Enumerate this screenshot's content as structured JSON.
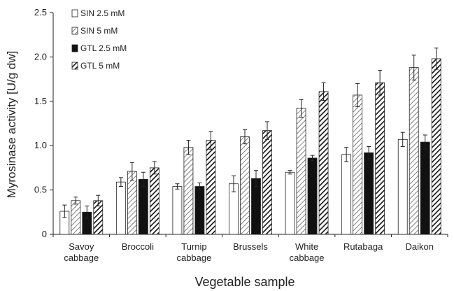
{
  "chart_data": {
    "type": "bar",
    "title": "",
    "xlabel": "Vegetable sample",
    "ylabel": "Myrosinase activity [U/g dw]",
    "ylim": [
      0,
      2.5
    ],
    "yticks": [
      "0",
      "0.5",
      "1.0",
      "1.5",
      "2.0",
      "2.5"
    ],
    "grid": false,
    "legend_position": "top-left",
    "categories": [
      [
        "Savoy",
        "cabbage"
      ],
      [
        "Broccoli"
      ],
      [
        "Turnip",
        "cabbage"
      ],
      [
        "Brussels"
      ],
      [
        "White",
        "cabbage"
      ],
      [
        "Rutabaga"
      ],
      [
        "Daikon"
      ]
    ],
    "series": [
      {
        "name": "SIN 2.5 mM",
        "style": "white",
        "values": [
          0.26,
          0.59,
          0.54,
          0.57,
          0.7,
          0.9,
          1.07
        ],
        "errors": [
          0.07,
          0.05,
          0.03,
          0.09,
          0.02,
          0.08,
          0.08
        ]
      },
      {
        "name": "SIN 5 mM",
        "style": "hatch-light",
        "values": [
          0.38,
          0.71,
          0.98,
          1.1,
          1.42,
          1.57,
          1.88
        ],
        "errors": [
          0.04,
          0.1,
          0.08,
          0.08,
          0.1,
          0.13,
          0.14
        ]
      },
      {
        "name": "GTL 2.5 mM",
        "style": "black",
        "values": [
          0.25,
          0.62,
          0.54,
          0.63,
          0.86,
          0.92,
          1.04
        ],
        "errors": [
          0.07,
          0.08,
          0.04,
          0.09,
          0.03,
          0.07,
          0.08
        ]
      },
      {
        "name": "GTL 5 mM",
        "style": "hatch-dark",
        "values": [
          0.38,
          0.75,
          1.06,
          1.17,
          1.61,
          1.71,
          1.98
        ],
        "errors": [
          0.06,
          0.07,
          0.1,
          0.1,
          0.1,
          0.14,
          0.12
        ]
      }
    ],
    "colors": {
      "stroke": "#222222",
      "fill_white": "#ffffff",
      "fill_black": "#111111"
    }
  }
}
